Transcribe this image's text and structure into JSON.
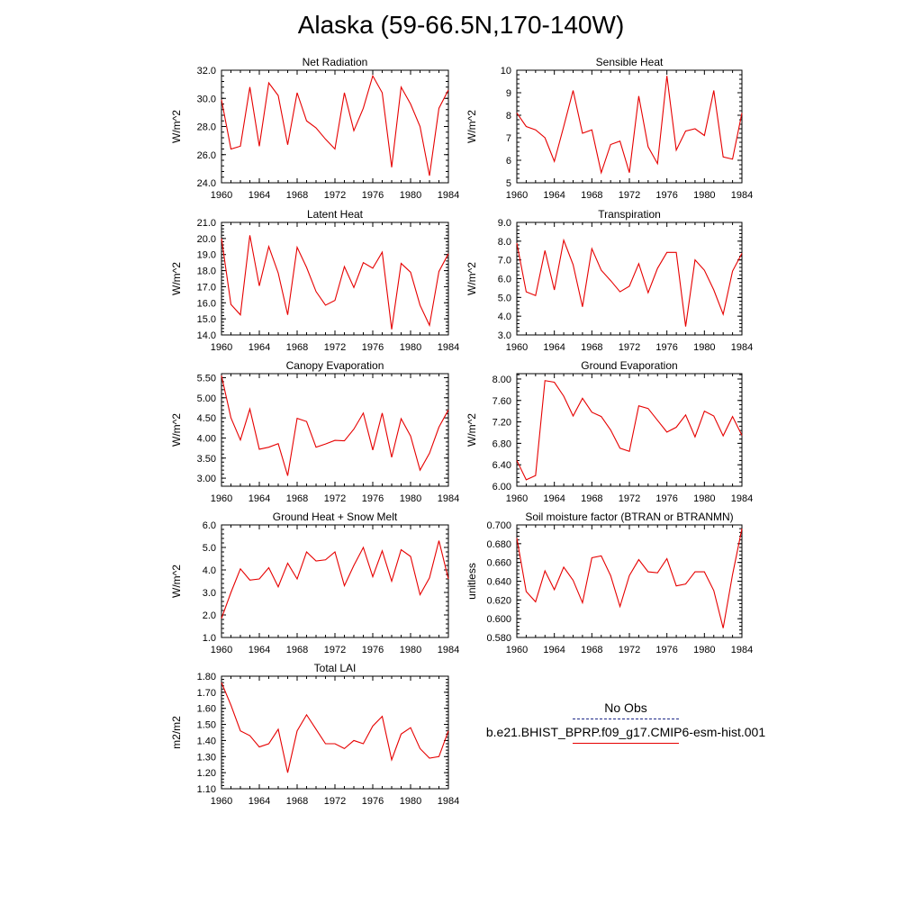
{
  "title": "Alaska (59-66.5N,170-140W)",
  "legend": {
    "obs_label": "No Obs",
    "model_label": "b.e21.BHIST_BPRP.f09_g17.CMIP6-esm-hist.001",
    "obs_color": "#1f2a8a",
    "model_color": "#e60000"
  },
  "chart_data": [
    {
      "type": "line",
      "title": "Net Radiation",
      "ylabel": "W/m^2",
      "xlim": [
        1960,
        1984
      ],
      "ylim": [
        24.0,
        32.0
      ],
      "xticks": [
        "1960",
        "1964",
        "1968",
        "1972",
        "1976",
        "1980",
        "1984"
      ],
      "yticks": [
        "24.0",
        "26.0",
        "28.0",
        "30.0",
        "32.0"
      ],
      "x": [
        1960,
        1961,
        1962,
        1963,
        1964,
        1965,
        1966,
        1967,
        1968,
        1969,
        1970,
        1971,
        1972,
        1973,
        1974,
        1975,
        1976,
        1977,
        1978,
        1979,
        1980,
        1981,
        1982,
        1983,
        1984
      ],
      "series": [
        {
          "name": "b.e21.BHIST_BPRP.f09_g17.CMIP6-esm-hist.001",
          "color": "#e60000",
          "values": [
            29.9,
            26.4,
            26.6,
            30.8,
            26.6,
            31.1,
            30.2,
            26.7,
            30.4,
            28.4,
            27.9,
            27.1,
            26.4,
            30.4,
            27.7,
            29.3,
            31.6,
            30.4,
            25.1,
            30.8,
            29.6,
            28.0,
            24.5,
            29.3,
            30.6
          ]
        }
      ]
    },
    {
      "type": "line",
      "title": "Sensible Heat",
      "ylabel": "W/m^2",
      "xlim": [
        1960,
        1984
      ],
      "ylim": [
        5,
        10
      ],
      "xticks": [
        "1960",
        "1964",
        "1968",
        "1972",
        "1976",
        "1980",
        "1984"
      ],
      "yticks": [
        "5",
        "6",
        "7",
        "8",
        "9",
        "10"
      ],
      "x": [
        1960,
        1961,
        1962,
        1963,
        1964,
        1965,
        1966,
        1967,
        1968,
        1969,
        1970,
        1971,
        1972,
        1973,
        1974,
        1975,
        1976,
        1977,
        1978,
        1979,
        1980,
        1981,
        1982,
        1983,
        1984
      ],
      "series": [
        {
          "name": "b.e21.BHIST_BPRP.f09_g17.CMIP6-esm-hist.001",
          "color": "#e60000",
          "values": [
            8.1,
            7.5,
            7.35,
            7.0,
            5.95,
            7.5,
            9.1,
            7.2,
            7.35,
            5.45,
            6.7,
            6.85,
            5.45,
            8.85,
            6.6,
            5.85,
            9.75,
            6.45,
            7.3,
            7.4,
            7.1,
            9.1,
            6.15,
            6.05,
            8.1
          ]
        }
      ]
    },
    {
      "type": "line",
      "title": "Latent Heat",
      "ylabel": "W/m^2",
      "xlim": [
        1960,
        1984
      ],
      "ylim": [
        14.0,
        21.0
      ],
      "xticks": [
        "1960",
        "1964",
        "1968",
        "1972",
        "1976",
        "1980",
        "1984"
      ],
      "yticks": [
        "14.0",
        "15.0",
        "16.0",
        "17.0",
        "18.0",
        "19.0",
        "20.0",
        "21.0"
      ],
      "x": [
        1960,
        1961,
        1962,
        1963,
        1964,
        1965,
        1966,
        1967,
        1968,
        1969,
        1970,
        1971,
        1972,
        1973,
        1974,
        1975,
        1976,
        1977,
        1978,
        1979,
        1980,
        1981,
        1982,
        1983,
        1984
      ],
      "series": [
        {
          "name": "b.e21.BHIST_BPRP.f09_g17.CMIP6-esm-hist.001",
          "color": "#e60000",
          "values": [
            20.0,
            15.9,
            15.25,
            20.2,
            17.05,
            19.5,
            17.85,
            15.25,
            19.45,
            18.2,
            16.7,
            15.85,
            16.15,
            18.25,
            16.95,
            18.5,
            18.15,
            19.15,
            14.35,
            18.45,
            17.9,
            15.85,
            14.6,
            17.95,
            19.05
          ]
        }
      ]
    },
    {
      "type": "line",
      "title": "Transpiration",
      "ylabel": "W/m^2",
      "xlim": [
        1960,
        1984
      ],
      "ylim": [
        3.0,
        9.0
      ],
      "xticks": [
        "1960",
        "1964",
        "1968",
        "1972",
        "1976",
        "1980",
        "1984"
      ],
      "yticks": [
        "3.0",
        "4.0",
        "5.0",
        "6.0",
        "7.0",
        "8.0",
        "9.0"
      ],
      "x": [
        1960,
        1961,
        1962,
        1963,
        1964,
        1965,
        1966,
        1967,
        1968,
        1969,
        1970,
        1971,
        1972,
        1973,
        1974,
        1975,
        1976,
        1977,
        1978,
        1979,
        1980,
        1981,
        1982,
        1983,
        1984
      ],
      "series": [
        {
          "name": "b.e21.BHIST_BPRP.f09_g17.CMIP6-esm-hist.001",
          "color": "#e60000",
          "values": [
            7.9,
            5.3,
            5.1,
            7.5,
            5.4,
            8.05,
            6.75,
            4.5,
            7.6,
            6.45,
            5.9,
            5.3,
            5.6,
            6.8,
            5.25,
            6.55,
            7.4,
            7.4,
            3.45,
            7.0,
            6.45,
            5.4,
            4.1,
            6.4,
            7.35
          ]
        }
      ]
    },
    {
      "type": "line",
      "title": "Canopy Evaporation",
      "ylabel": "W/m^2",
      "xlim": [
        1960,
        1984
      ],
      "ylim": [
        2.8,
        5.6
      ],
      "xticks": [
        "1960",
        "1964",
        "1968",
        "1972",
        "1976",
        "1980",
        "1984"
      ],
      "yticks": [
        "3.00",
        "3.50",
        "4.00",
        "4.50",
        "5.00",
        "5.50"
      ],
      "x": [
        1960,
        1961,
        1962,
        1963,
        1964,
        1965,
        1966,
        1967,
        1968,
        1969,
        1970,
        1971,
        1972,
        1973,
        1974,
        1975,
        1976,
        1977,
        1978,
        1979,
        1980,
        1981,
        1982,
        1983,
        1984
      ],
      "series": [
        {
          "name": "b.e21.BHIST_BPRP.f09_g17.CMIP6-esm-hist.001",
          "color": "#e60000",
          "values": [
            5.55,
            4.5,
            3.95,
            4.72,
            3.72,
            3.77,
            3.86,
            3.06,
            4.49,
            4.41,
            3.77,
            3.85,
            3.94,
            3.93,
            4.22,
            4.62,
            3.7,
            4.62,
            3.52,
            4.48,
            4.05,
            3.2,
            3.62,
            4.27,
            4.7
          ]
        }
      ]
    },
    {
      "type": "line",
      "title": "Ground Evaporation",
      "ylabel": "W/m^2",
      "xlim": [
        1960,
        1984
      ],
      "ylim": [
        6.0,
        8.1
      ],
      "xticks": [
        "1960",
        "1964",
        "1968",
        "1972",
        "1976",
        "1980",
        "1984"
      ],
      "yticks": [
        "6.00",
        "6.40",
        "6.80",
        "7.20",
        "7.60",
        "8.00"
      ],
      "x": [
        1960,
        1961,
        1962,
        1963,
        1964,
        1965,
        1966,
        1967,
        1968,
        1969,
        1970,
        1971,
        1972,
        1973,
        1974,
        1975,
        1976,
        1977,
        1978,
        1979,
        1980,
        1981,
        1982,
        1983,
        1984
      ],
      "series": [
        {
          "name": "b.e21.BHIST_BPRP.f09_g17.CMIP6-esm-hist.001",
          "color": "#e60000",
          "values": [
            6.48,
            6.12,
            6.2,
            7.97,
            7.94,
            7.68,
            7.31,
            7.64,
            7.38,
            7.3,
            7.05,
            6.71,
            6.65,
            7.5,
            7.45,
            7.23,
            7.01,
            7.1,
            7.33,
            6.92,
            7.4,
            7.31,
            6.94,
            7.3,
            6.95
          ]
        }
      ]
    },
    {
      "type": "line",
      "title": "Ground Heat + Snow Melt",
      "ylabel": "W/m^2",
      "xlim": [
        1960,
        1984
      ],
      "ylim": [
        1.0,
        6.0
      ],
      "xticks": [
        "1960",
        "1964",
        "1968",
        "1972",
        "1976",
        "1980",
        "1984"
      ],
      "yticks": [
        "1.0",
        "2.0",
        "3.0",
        "4.0",
        "5.0",
        "6.0"
      ],
      "x": [
        1960,
        1961,
        1962,
        1963,
        1964,
        1965,
        1966,
        1967,
        1968,
        1969,
        1970,
        1971,
        1972,
        1973,
        1974,
        1975,
        1976,
        1977,
        1978,
        1979,
        1980,
        1981,
        1982,
        1983,
        1984
      ],
      "series": [
        {
          "name": "b.e21.BHIST_BPRP.f09_g17.CMIP6-esm-hist.001",
          "color": "#e60000",
          "values": [
            1.85,
            3.0,
            4.05,
            3.55,
            3.6,
            4.1,
            3.25,
            4.3,
            3.6,
            4.8,
            4.4,
            4.45,
            4.8,
            3.3,
            4.2,
            5.0,
            3.7,
            4.85,
            3.5,
            4.9,
            4.6,
            2.9,
            3.65,
            5.3,
            3.6
          ]
        }
      ]
    },
    {
      "type": "line",
      "title": "Soil moisture factor (BTRAN or BTRANMN)",
      "ylabel": "unitless",
      "xlim": [
        1960,
        1984
      ],
      "ylim": [
        0.58,
        0.7
      ],
      "xticks": [
        "1960",
        "1964",
        "1968",
        "1972",
        "1976",
        "1980",
        "1984"
      ],
      "yticks": [
        "0.580",
        "0.600",
        "0.620",
        "0.640",
        "0.660",
        "0.680",
        "0.700"
      ],
      "x": [
        1960,
        1961,
        1962,
        1963,
        1964,
        1965,
        1966,
        1967,
        1968,
        1969,
        1970,
        1971,
        1972,
        1973,
        1974,
        1975,
        1976,
        1977,
        1978,
        1979,
        1980,
        1981,
        1982,
        1983,
        1984
      ],
      "series": [
        {
          "name": "b.e21.BHIST_BPRP.f09_g17.CMIP6-esm-hist.001",
          "color": "#e60000",
          "values": [
            0.686,
            0.629,
            0.618,
            0.651,
            0.631,
            0.655,
            0.641,
            0.617,
            0.665,
            0.667,
            0.646,
            0.613,
            0.646,
            0.663,
            0.65,
            0.649,
            0.664,
            0.635,
            0.637,
            0.65,
            0.65,
            0.63,
            0.59,
            0.647,
            0.696
          ]
        }
      ]
    },
    {
      "type": "line",
      "title": "Total LAI",
      "ylabel": "m2/m2",
      "xlim": [
        1960,
        1984
      ],
      "ylim": [
        1.1,
        1.8
      ],
      "xticks": [
        "1960",
        "1964",
        "1968",
        "1972",
        "1976",
        "1980",
        "1984"
      ],
      "yticks": [
        "1.10",
        "1.20",
        "1.30",
        "1.40",
        "1.50",
        "1.60",
        "1.70",
        "1.80"
      ],
      "x": [
        1960,
        1961,
        1962,
        1963,
        1964,
        1965,
        1966,
        1967,
        1968,
        1969,
        1970,
        1971,
        1972,
        1973,
        1974,
        1975,
        1976,
        1977,
        1978,
        1979,
        1980,
        1981,
        1982,
        1983,
        1984
      ],
      "series": [
        {
          "name": "b.e21.BHIST_BPRP.f09_g17.CMIP6-esm-hist.001",
          "color": "#e60000",
          "values": [
            1.76,
            1.62,
            1.46,
            1.43,
            1.36,
            1.38,
            1.47,
            1.2,
            1.46,
            1.56,
            1.47,
            1.38,
            1.38,
            1.35,
            1.4,
            1.38,
            1.49,
            1.55,
            1.28,
            1.44,
            1.48,
            1.35,
            1.29,
            1.3,
            1.46
          ]
        }
      ]
    }
  ]
}
